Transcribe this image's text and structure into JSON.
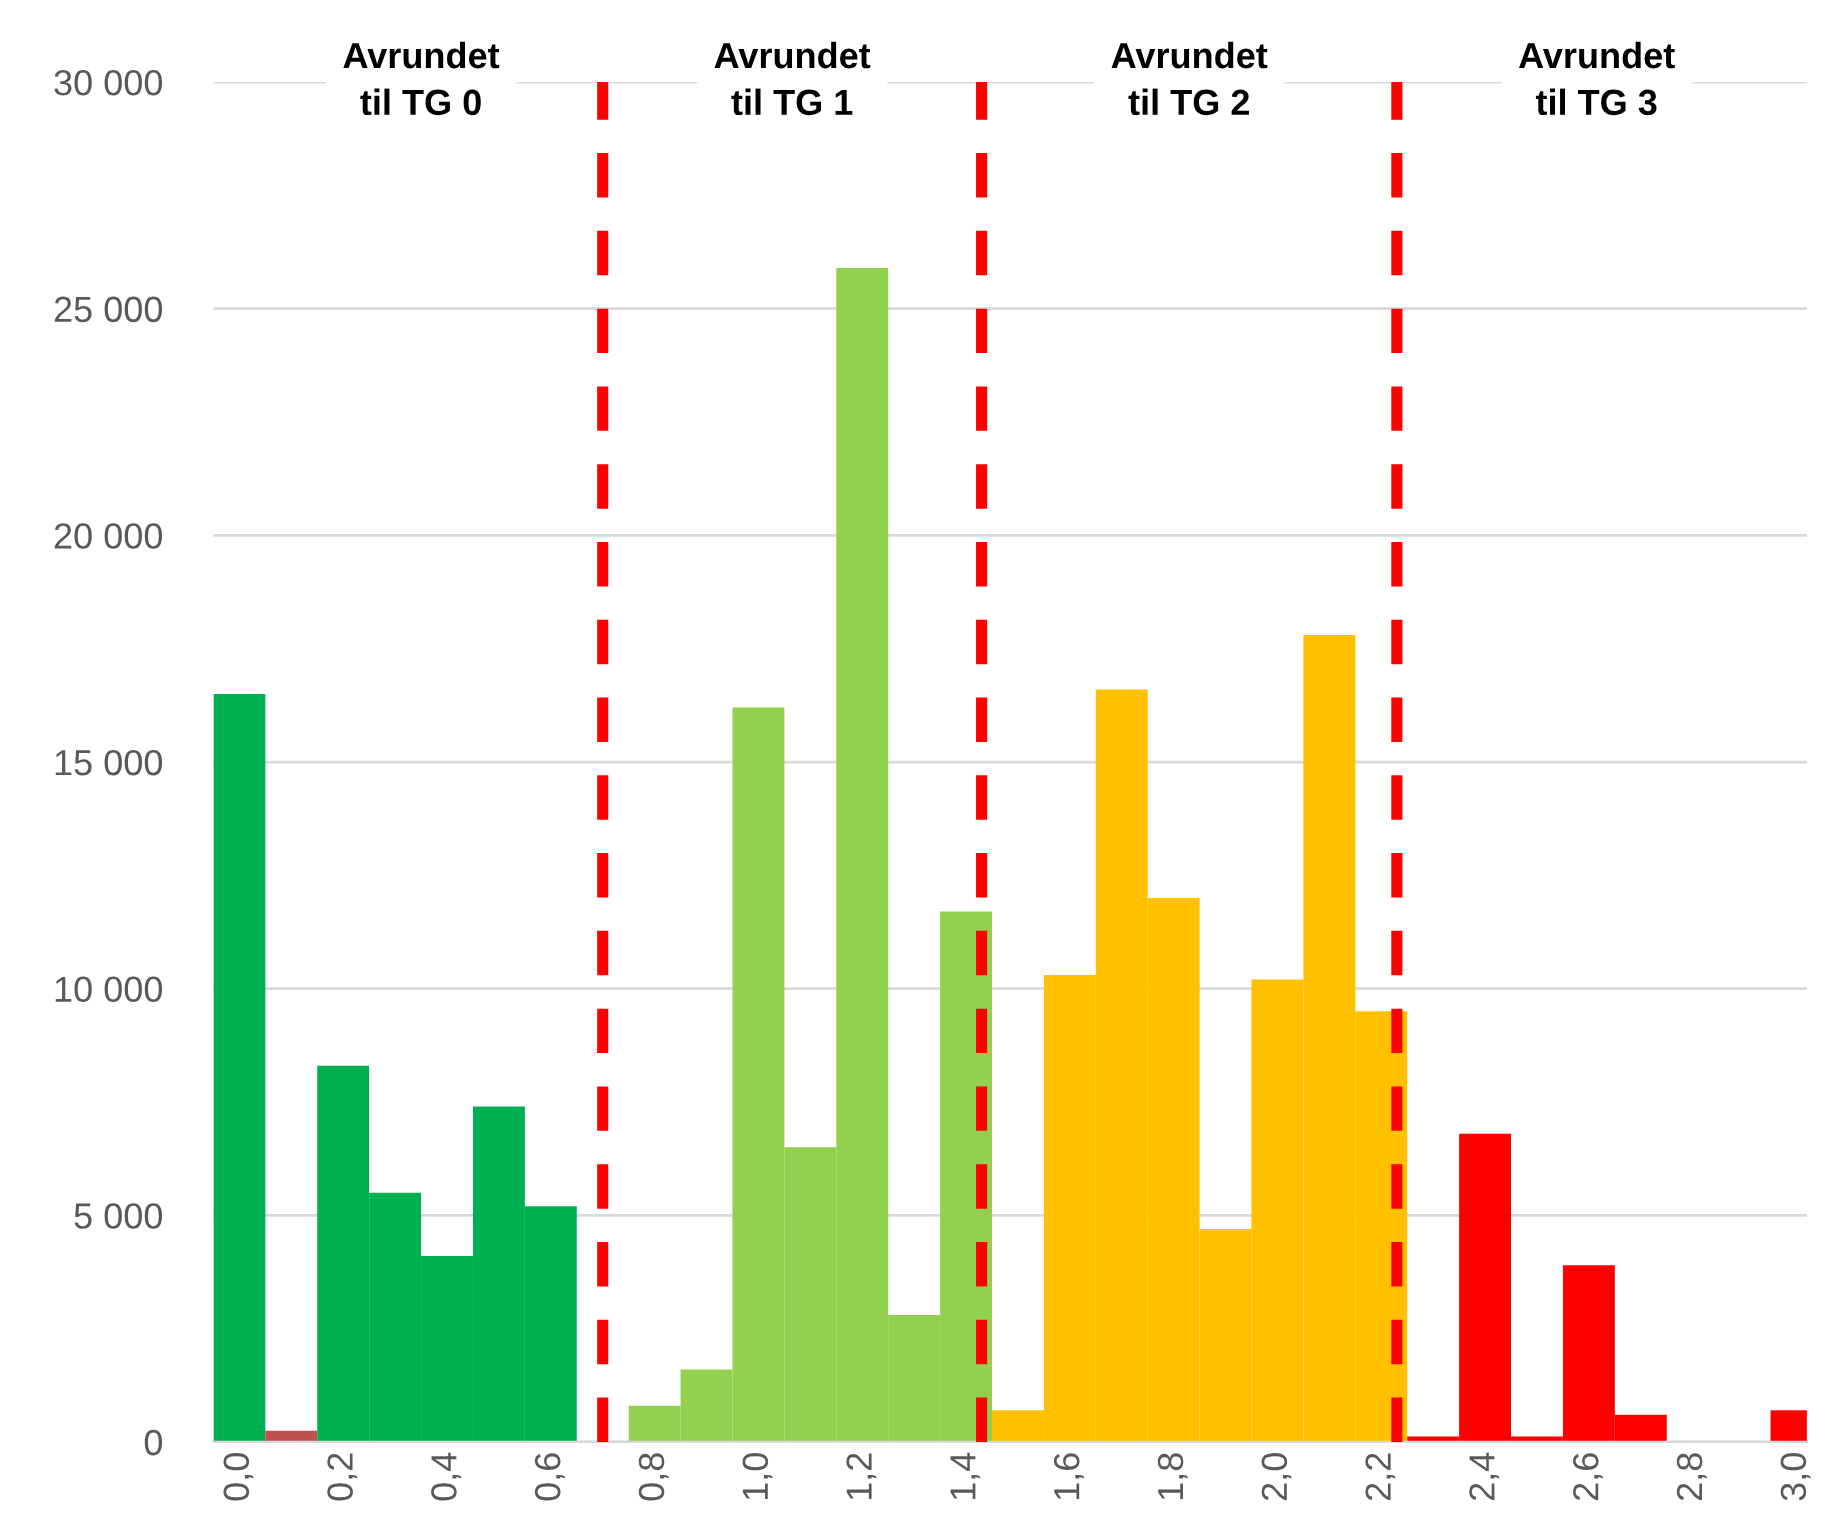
{
  "chart_data": {
    "type": "bar",
    "x": [
      0.0,
      0.1,
      0.2,
      0.3,
      0.4,
      0.5,
      0.6,
      0.7,
      0.8,
      0.9,
      1.0,
      1.1,
      1.2,
      1.3,
      1.4,
      1.5,
      1.6,
      1.7,
      1.8,
      1.9,
      2.0,
      2.1,
      2.2,
      2.3,
      2.4,
      2.5,
      2.6,
      2.7,
      2.8,
      2.9,
      3.0
    ],
    "values": [
      16500,
      250,
      8300,
      5500,
      4100,
      7400,
      5200,
      0,
      800,
      1600,
      16200,
      6500,
      25900,
      2800,
      11700,
      700,
      10300,
      16600,
      12000,
      4700,
      10200,
      17800,
      9500,
      120,
      6800,
      120,
      3900,
      600,
      0,
      0,
      700
    ],
    "colors": [
      "#00b050",
      "#c0504d",
      "#00b050",
      "#00b050",
      "#00b050",
      "#00b050",
      "#00b050",
      "#92d050",
      "#92d050",
      "#92d050",
      "#92d050",
      "#92d050",
      "#92d050",
      "#92d050",
      "#92d050",
      "#ffc000",
      "#ffc000",
      "#ffc000",
      "#ffc000",
      "#ffc000",
      "#ffc000",
      "#ffc000",
      "#ffc000",
      "#ff0000",
      "#ff0000",
      "#ff0000",
      "#ff0000",
      "#ff0000",
      "#ff0000",
      "#ff0000",
      "#ff0000"
    ],
    "xlim": [
      -0.05,
      3.02
    ],
    "xticks": [
      {
        "value": 0.0,
        "label": "0,0"
      },
      {
        "value": 0.2,
        "label": "0,2"
      },
      {
        "value": 0.4,
        "label": "0,4"
      },
      {
        "value": 0.6,
        "label": "0,6"
      },
      {
        "value": 0.8,
        "label": "0,8"
      },
      {
        "value": 1.0,
        "label": "1,0"
      },
      {
        "value": 1.2,
        "label": "1,2"
      },
      {
        "value": 1.4,
        "label": "1,4"
      },
      {
        "value": 1.6,
        "label": "1,6"
      },
      {
        "value": 1.8,
        "label": "1,8"
      },
      {
        "value": 2.0,
        "label": "2,0"
      },
      {
        "value": 2.2,
        "label": "2,2"
      },
      {
        "value": 2.4,
        "label": "2,4"
      },
      {
        "value": 2.6,
        "label": "2,6"
      },
      {
        "value": 2.8,
        "label": "2,8"
      },
      {
        "value": 3.0,
        "label": "3,0"
      }
    ],
    "ylim": [
      0,
      30000
    ],
    "yticks": [
      0,
      {
        "value": 5000,
        "label": "5 000"
      },
      {
        "value": 10000,
        "label": "10 000"
      },
      {
        "value": 15000,
        "label": "15 000"
      },
      {
        "value": 20000,
        "label": "20 000"
      },
      {
        "value": 25000,
        "label": "25 000"
      },
      {
        "value": 30000,
        "label": "30 000"
      }
    ],
    "grid": "y",
    "ref_lines": [
      {
        "axis": "x",
        "value": 0.7,
        "color": "#ff0000",
        "line_style": "dashed"
      },
      {
        "axis": "x",
        "value": 1.43,
        "color": "#ff0000",
        "line_style": "dashed"
      },
      {
        "axis": "x",
        "value": 2.23,
        "color": "#ff0000",
        "line_style": "dashed"
      }
    ],
    "annotations": [
      "Avrundet\ntil TG 0",
      "Avrundet\ntil TG 1",
      "Avrundet\ntil TG 2",
      "Avrundet\ntil TG 3"
    ]
  }
}
